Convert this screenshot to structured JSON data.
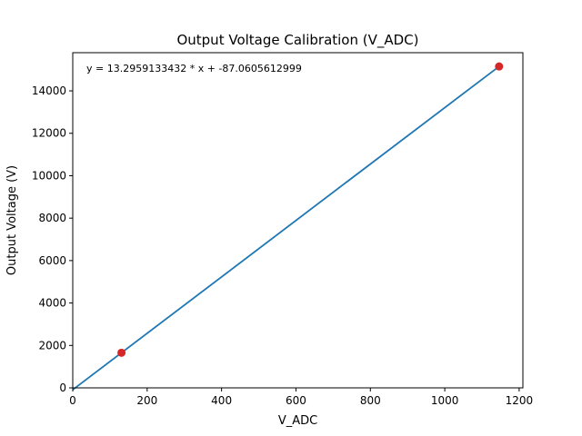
{
  "chart_data": {
    "type": "scatter",
    "title": "Output Voltage Calibration (V_ADC)",
    "xlabel": "V_ADC",
    "ylabel": "Output Voltage (V)",
    "annotation": "y = 13.2959133432 * x + -87.0605612999",
    "xlim": [
      0,
      1210
    ],
    "ylim": [
      0,
      15800
    ],
    "x_ticks": [
      0,
      200,
      400,
      600,
      800,
      1000,
      1200
    ],
    "y_ticks": [
      0,
      2000,
      4000,
      6000,
      8000,
      10000,
      12000,
      14000
    ],
    "grid": false,
    "series": [
      {
        "kind": "points",
        "color": "#d62728",
        "x": [
          131,
          1146
        ],
        "y": [
          1655,
          15150
        ]
      },
      {
        "kind": "fit-line",
        "color": "#1f77b4",
        "slope": 13.2959133432,
        "intercept": -87.0605612999,
        "x_range": [
          0,
          1146
        ]
      }
    ]
  }
}
